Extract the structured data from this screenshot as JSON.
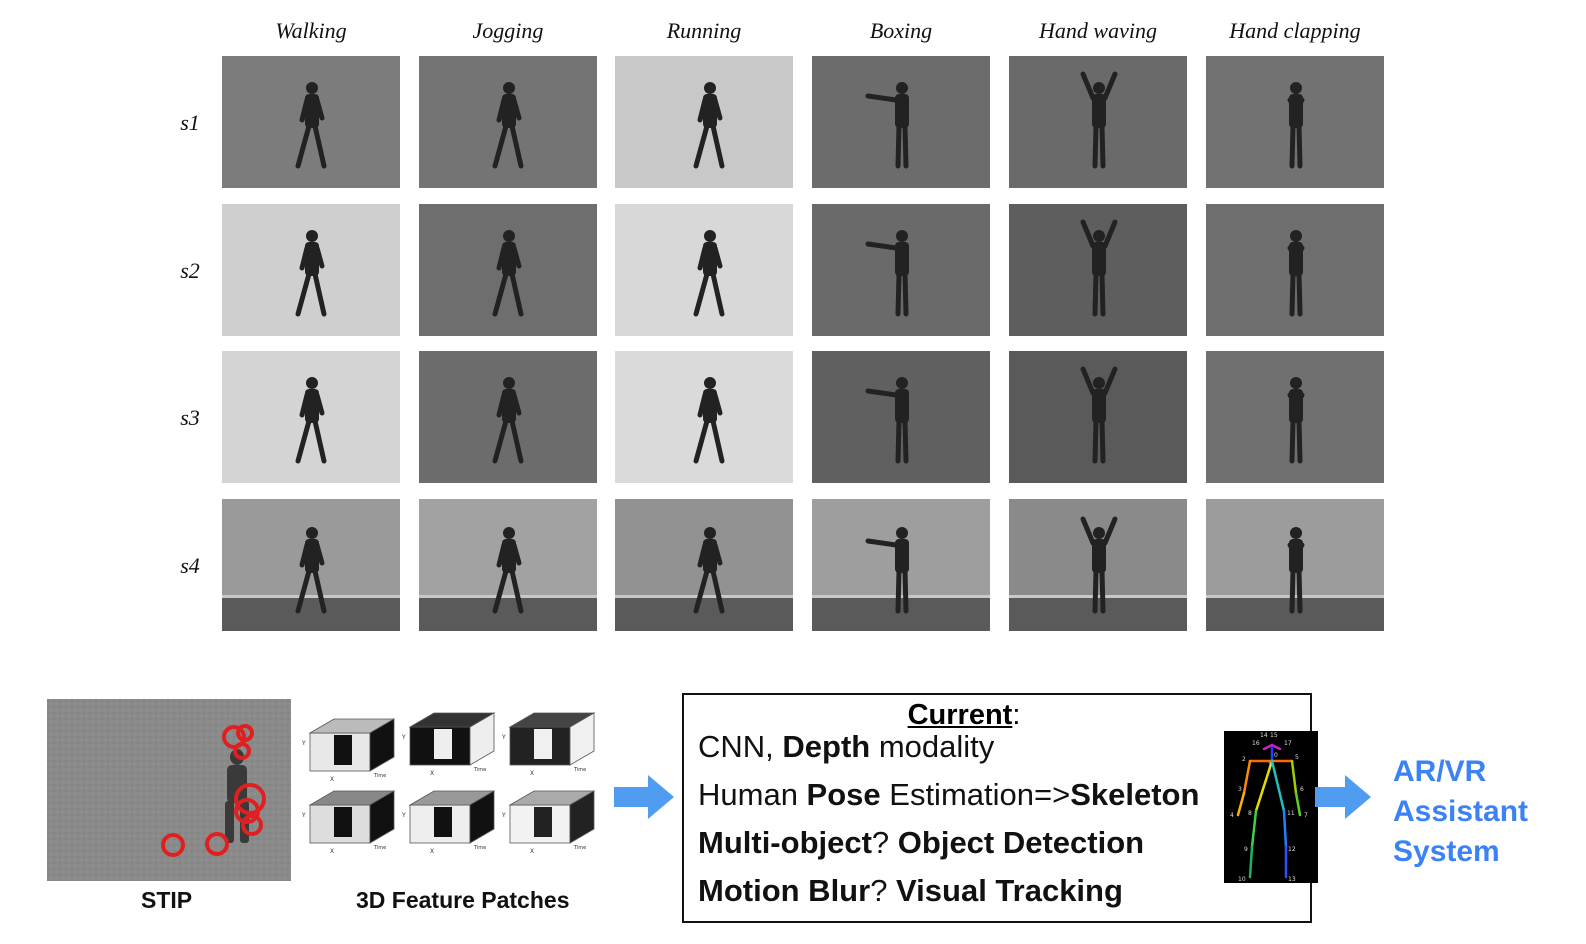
{
  "columns": [
    "Walking",
    "Jogging",
    "Running",
    "Boxing",
    "Hand waving",
    "Hand clapping"
  ],
  "rows": [
    "s1",
    "s2",
    "s3",
    "s4"
  ],
  "captions": {
    "stip": "STIP",
    "patches": "3D Feature Patches"
  },
  "current": {
    "title": "Current",
    "title_suffix": ":",
    "line1": [
      "CNN, ",
      "Depth",
      " modality"
    ],
    "line2": [
      "Human ",
      "Pose",
      " Estimation=>",
      "Skeleton"
    ],
    "line3": [
      "Multi-object",
      "? ",
      "Object Detection"
    ],
    "line4": [
      "Motion Blur",
      "? ",
      "Visual Tracking"
    ]
  },
  "output": {
    "line1": "AR/VR",
    "line2": "Assistant",
    "line3": "System"
  },
  "patch_axis": {
    "x": "X",
    "y": "Y",
    "t": "Time"
  },
  "skeleton_labels": [
    "14",
    "15",
    "16",
    "17",
    "0",
    "1",
    "2",
    "5",
    "3",
    "6",
    "4",
    "7",
    "8",
    "11",
    "9",
    "12",
    "10",
    "13"
  ],
  "colors": {
    "accent": "#3b82f6",
    "arrow": "#4f9cf0"
  }
}
